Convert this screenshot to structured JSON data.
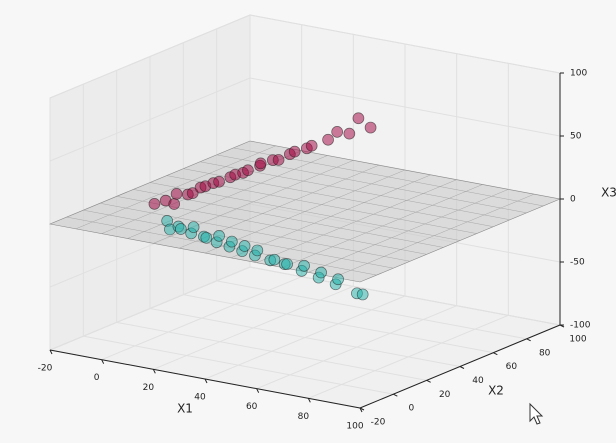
{
  "chart_data": {
    "type": "scatter3d",
    "xlabel": "X1",
    "ylabel": "X2",
    "zlabel": "X3",
    "xlim": [
      -20,
      100
    ],
    "ylim": [
      -20,
      100
    ],
    "zlim": [
      -100,
      100
    ],
    "xticks": [
      -20,
      0,
      20,
      40,
      60,
      80,
      100
    ],
    "yticks": [
      -20,
      0,
      20,
      40,
      60,
      80,
      100
    ],
    "zticks": [
      -100,
      -50,
      0,
      50,
      100
    ],
    "grid": true,
    "plane": {
      "z": 0,
      "color": "#c8c8c8"
    },
    "series": [
      {
        "color": "#a0003c",
        "x": [
          3,
          8,
          10,
          9,
          14,
          12,
          17,
          15,
          20,
          19,
          24,
          22,
          27,
          25,
          31,
          28,
          34,
          33,
          38,
          36,
          42,
          40,
          47,
          46,
          52,
          51,
          57
        ],
        "y": [
          7,
          6,
          8,
          11,
          10,
          16,
          13,
          19,
          16,
          21,
          20,
          26,
          23,
          29,
          27,
          32,
          30,
          35,
          34,
          40,
          38,
          44,
          43,
          50,
          48,
          55,
          53
        ],
        "z": [
          10,
          15,
          12,
          18,
          20,
          17,
          25,
          22,
          28,
          26,
          32,
          30,
          35,
          33,
          40,
          38,
          44,
          41,
          48,
          46,
          52,
          50,
          58,
          60,
          62,
          70,
          66
        ]
      },
      {
        "color": "#20b2aa",
        "x": [
          6,
          9,
          11,
          10,
          14,
          13,
          17,
          16,
          20,
          19,
          23,
          22,
          26,
          25,
          29,
          28,
          33,
          32,
          36,
          35,
          40,
          39,
          44,
          43,
          48,
          47,
          53,
          52
        ],
        "y": [
          10,
          7,
          9,
          12,
          12,
          15,
          15,
          18,
          18,
          21,
          21,
          24,
          24,
          27,
          27,
          30,
          30,
          34,
          34,
          37,
          38,
          41,
          42,
          45,
          46,
          49,
          51,
          56
        ],
        "z": [
          -4,
          -8,
          -6,
          -10,
          -12,
          -9,
          -15,
          -18,
          -20,
          -17,
          -24,
          -22,
          -28,
          -26,
          -32,
          -30,
          -36,
          -38,
          -40,
          -42,
          -46,
          -44,
          -52,
          -50,
          -58,
          -56,
          -66,
          -70
        ]
      }
    ]
  }
}
